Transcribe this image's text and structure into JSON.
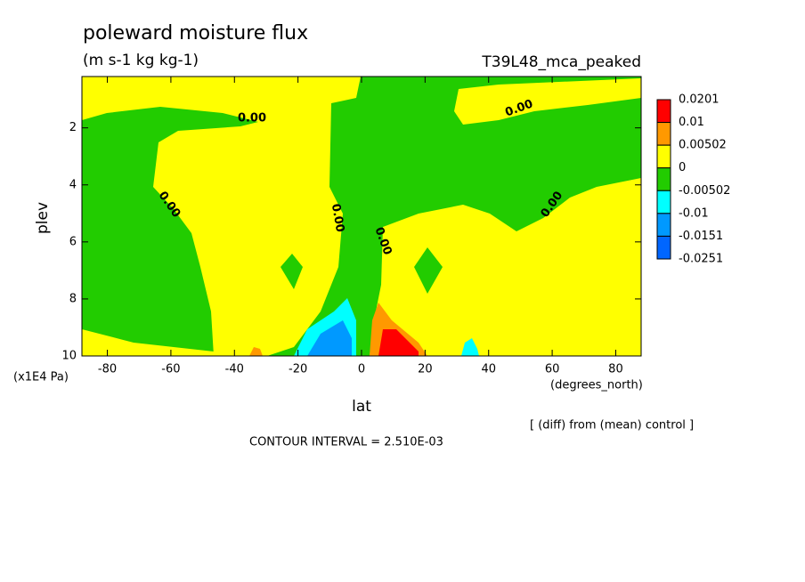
{
  "chart_data": {
    "type": "contour",
    "title": "poleward moisture flux",
    "subtitle": "(m s-1 kg kg-1)",
    "dataset": "T39L48_mca_peaked",
    "xlabel": "lat",
    "xunits": "(degrees_north)",
    "ylabel": "plev",
    "yunits": "(x1E4 Pa)",
    "xlim": [
      -88,
      88
    ],
    "xticks": [
      -80,
      -60,
      -40,
      -20,
      0,
      20,
      40,
      60,
      80
    ],
    "ylim": [
      10,
      0.2
    ],
    "yticks": [
      2,
      4,
      6,
      8,
      10
    ],
    "colorbar": {
      "levels": [
        0.0201,
        0.01,
        0.00502,
        0,
        -0.00502,
        -0.01,
        -0.0151,
        -0.0251
      ],
      "colors": [
        "#ff0000",
        "#ff9900",
        "#ffff00",
        "#22cc00",
        "#00ffff",
        "#0099ff",
        "#0066ff"
      ]
    },
    "contour_labels": [
      "0.00",
      "0.00",
      "0.00",
      "0.00",
      "0.00",
      "0.00"
    ],
    "note": "[ (diff) from (mean) control ]",
    "contour_interval": "CONTOUR INTERVAL = 2.510E-03"
  }
}
